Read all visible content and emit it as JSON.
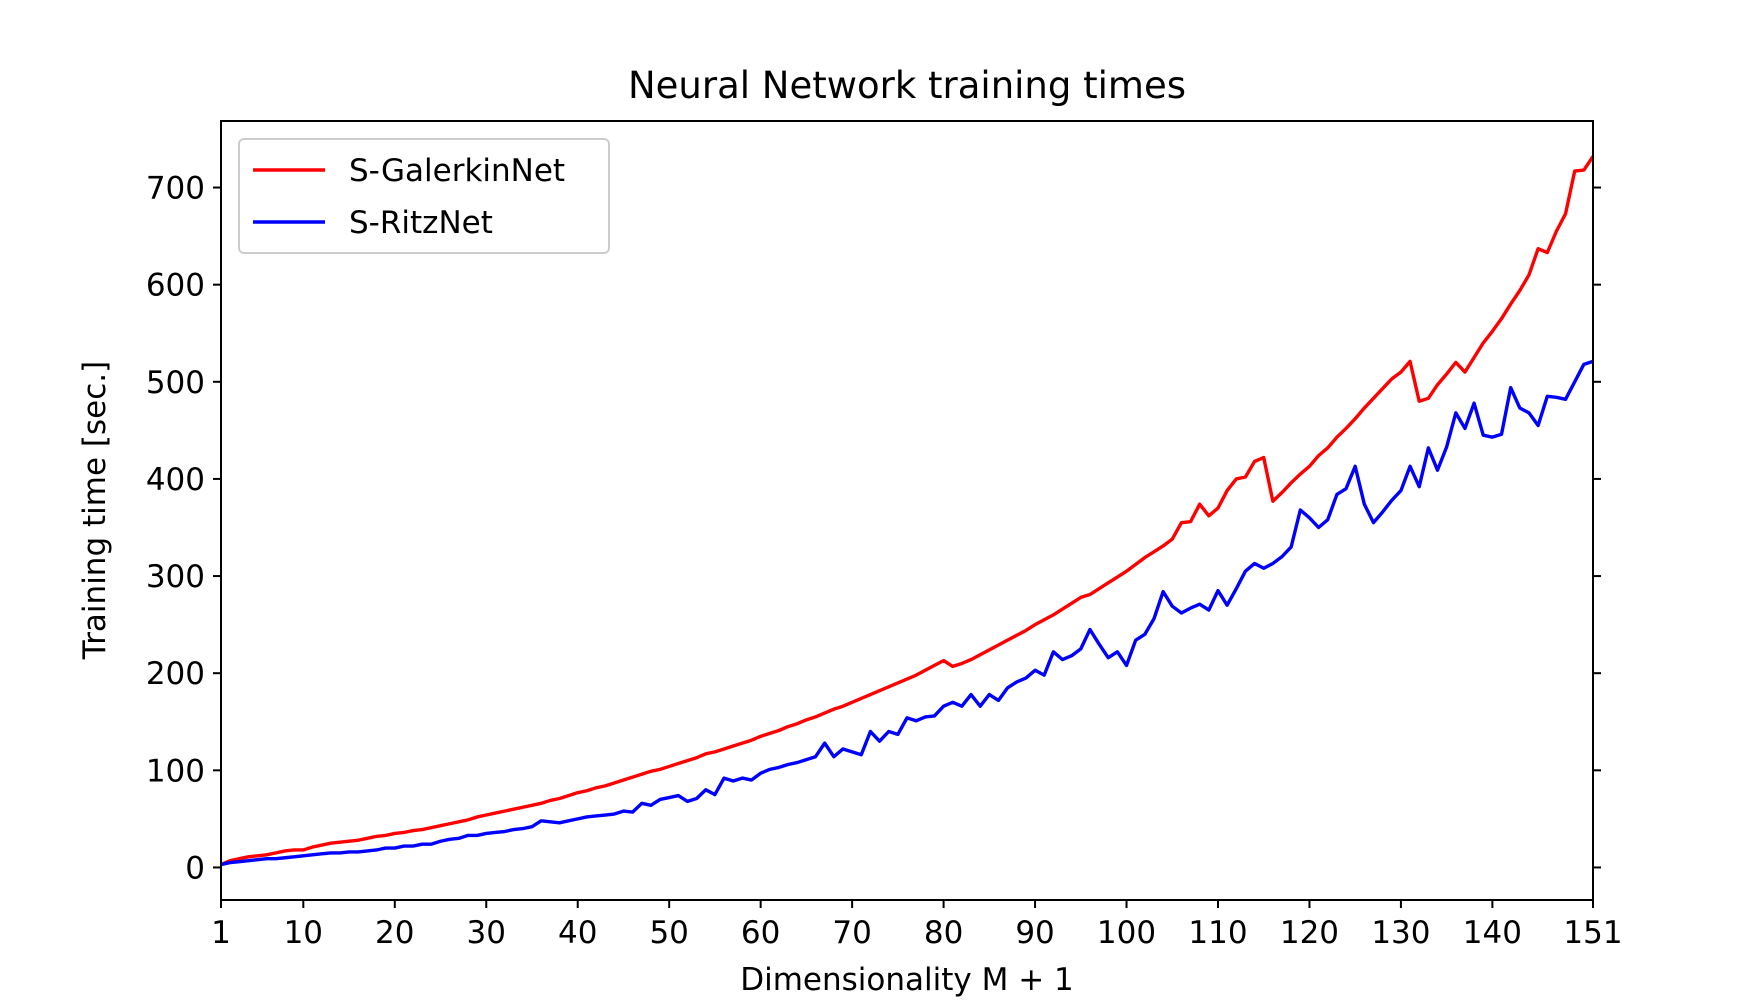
{
  "chart_data": {
    "type": "line",
    "title": "Neural Network training times",
    "xlabel": "Dimensionality M + 1",
    "ylabel": "Training time [sec.]",
    "x": [
      1,
      2,
      3,
      4,
      5,
      6,
      7,
      8,
      9,
      10,
      11,
      12,
      13,
      14,
      15,
      16,
      17,
      18,
      19,
      20,
      21,
      22,
      23,
      24,
      25,
      26,
      27,
      28,
      29,
      30,
      31,
      32,
      33,
      34,
      35,
      36,
      37,
      38,
      39,
      40,
      41,
      42,
      43,
      44,
      45,
      46,
      47,
      48,
      49,
      50,
      51,
      52,
      53,
      54,
      55,
      56,
      57,
      58,
      59,
      60,
      61,
      62,
      63,
      64,
      65,
      66,
      67,
      68,
      69,
      70,
      71,
      72,
      73,
      74,
      75,
      76,
      77,
      78,
      79,
      80,
      81,
      82,
      83,
      84,
      85,
      86,
      87,
      88,
      89,
      90,
      91,
      92,
      93,
      94,
      95,
      96,
      97,
      98,
      99,
      100,
      101,
      102,
      103,
      104,
      105,
      106,
      107,
      108,
      109,
      110,
      111,
      112,
      113,
      114,
      115,
      116,
      117,
      118,
      119,
      120,
      121,
      122,
      123,
      124,
      125,
      126,
      127,
      128,
      129,
      130,
      131,
      132,
      133,
      134,
      135,
      136,
      137,
      138,
      139,
      140,
      141,
      142,
      143,
      144,
      145,
      146,
      147,
      148,
      149,
      150,
      151
    ],
    "series": [
      {
        "name": "S-GalerkinNet",
        "color": "#ff0000",
        "values": [
          3,
          7,
          9,
          11,
          12,
          13,
          15,
          17,
          18,
          18,
          21,
          23,
          25,
          26,
          27,
          28,
          30,
          32,
          33,
          35,
          36,
          38,
          39,
          41,
          43,
          45,
          47,
          49,
          52,
          54,
          56,
          58,
          60,
          62,
          64,
          66,
          69,
          71,
          74,
          77,
          79,
          82,
          84,
          87,
          90,
          93,
          96,
          99,
          101,
          104,
          107,
          110,
          113,
          117,
          119,
          122,
          125,
          128,
          131,
          135,
          138,
          141,
          145,
          148,
          152,
          155,
          159,
          163,
          166,
          170,
          174,
          178,
          182,
          186,
          190,
          194,
          198,
          203,
          208,
          213,
          207,
          210,
          214,
          219,
          224,
          229,
          234,
          239,
          244,
          250,
          255,
          260,
          266,
          272,
          278,
          281,
          287,
          293,
          299,
          305,
          312,
          319,
          325,
          331,
          338,
          355,
          356,
          374,
          362,
          370,
          388,
          400,
          402,
          418,
          422,
          377,
          386,
          396,
          405,
          413,
          424,
          432,
          443,
          452,
          462,
          473,
          483,
          493,
          503,
          510,
          521,
          480,
          483,
          497,
          508,
          520,
          510,
          525,
          540,
          552,
          565,
          580,
          594,
          610,
          637,
          633,
          655,
          673,
          717,
          718,
          732
        ]
      },
      {
        "name": "S-RitzNet",
        "color": "#0000ff",
        "values": [
          3,
          5,
          6,
          7,
          8,
          9,
          9,
          10,
          11,
          12,
          13,
          14,
          15,
          15,
          16,
          16,
          17,
          18,
          20,
          20,
          22,
          22,
          24,
          24,
          27,
          29,
          30,
          33,
          33,
          35,
          36,
          37,
          39,
          40,
          42,
          48,
          47,
          46,
          48,
          50,
          52,
          53,
          54,
          55,
          58,
          57,
          66,
          64,
          70,
          72,
          74,
          68,
          71,
          80,
          75,
          92,
          89,
          92,
          90,
          97,
          101,
          103,
          106,
          108,
          111,
          114,
          128,
          114,
          122,
          119,
          116,
          140,
          130,
          140,
          137,
          154,
          151,
          155,
          156,
          166,
          170,
          166,
          178,
          166,
          178,
          172,
          185,
          191,
          195,
          203,
          198,
          222,
          214,
          218,
          225,
          245,
          230,
          216,
          222,
          208,
          234,
          240,
          256,
          284,
          269,
          262,
          267,
          271,
          265,
          285,
          270,
          287,
          305,
          313,
          308,
          313,
          320,
          330,
          368,
          360,
          350,
          358,
          384,
          390,
          413,
          374,
          355,
          366,
          378,
          388,
          413,
          392,
          432,
          409,
          433,
          468,
          452,
          478,
          445,
          443,
          446,
          494,
          473,
          468,
          455,
          485,
          484,
          482,
          500,
          518,
          521
        ]
      }
    ],
    "xlim": [
      1,
      151
    ],
    "xticks": [
      1,
      10,
      20,
      30,
      40,
      50,
      60,
      70,
      80,
      90,
      100,
      110,
      120,
      130,
      140,
      151
    ],
    "ylim": [
      -33.5,
      768.5
    ],
    "yticks": [
      0,
      100,
      200,
      300,
      400,
      500,
      600,
      700
    ],
    "grid": false,
    "legend": "upper left"
  }
}
